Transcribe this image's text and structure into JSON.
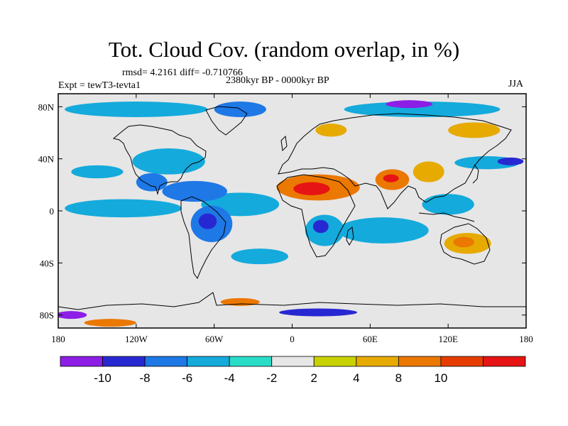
{
  "title": "Tot. Cloud Cov. (random overlap, in %)",
  "stats": "rmsd= 4.2161 diff= -0.710766",
  "period": "2380kyr BP - 0000kyr BP",
  "experiment": "Expt = tewT3-tevta1",
  "season": "JJA",
  "map": {
    "projection": "cylindrical equidistant",
    "lon_range": [
      -180,
      180
    ],
    "lat_range": [
      -90,
      90
    ],
    "background_color": "#e6e6e6",
    "coastline_color": "#000000",
    "lon_ticks": [
      {
        "value": -180,
        "label": "180"
      },
      {
        "value": -120,
        "label": "120W"
      },
      {
        "value": -60,
        "label": "60W"
      },
      {
        "value": 0,
        "label": "0"
      },
      {
        "value": 60,
        "label": "60E"
      },
      {
        "value": 120,
        "label": "120E"
      },
      {
        "value": 180,
        "label": "180"
      }
    ],
    "lat_ticks": [
      {
        "value": 80,
        "label": "80N"
      },
      {
        "value": 40,
        "label": "40N"
      },
      {
        "value": 0,
        "label": "0"
      },
      {
        "value": -40,
        "label": "40S"
      },
      {
        "value": -80,
        "label": "80S"
      }
    ]
  },
  "colorbar": {
    "colors": [
      "#8c1ee6",
      "#2828d2",
      "#1e78e6",
      "#14aadc",
      "#28dcc8",
      "#e6e6e6",
      "#c8d200",
      "#e6aa00",
      "#eb7800",
      "#e63c00",
      "#e61414"
    ],
    "labels": [
      {
        "boundary": 1,
        "text": "-10"
      },
      {
        "boundary": 2,
        "text": "-8"
      },
      {
        "boundary": 3,
        "text": "-6"
      },
      {
        "boundary": 4,
        "text": "-4"
      },
      {
        "boundary": 5,
        "text": "-2"
      },
      {
        "boundary": 6,
        "text": "2"
      },
      {
        "boundary": 7,
        "text": "4"
      },
      {
        "boundary": 8,
        "text": "8"
      },
      {
        "boundary": 9,
        "text": "10"
      }
    ]
  },
  "anomaly_regions": [
    {
      "name": "north-africa-arabia-increase",
      "lon": 20,
      "lat": 18,
      "rx": 32,
      "ry": 10,
      "level": 8
    },
    {
      "name": "sahel-core",
      "lon": 15,
      "lat": 17,
      "rx": 14,
      "ry": 5,
      "level": 10
    },
    {
      "name": "india-increase",
      "lon": 77,
      "lat": 24,
      "rx": 13,
      "ry": 8,
      "level": 8
    },
    {
      "name": "india-core",
      "lon": 76,
      "lat": 25,
      "rx": 6,
      "ry": 3,
      "level": 10
    },
    {
      "name": "east-asia-increase",
      "lon": 105,
      "lat": 30,
      "rx": 12,
      "ry": 8,
      "level": 4
    },
    {
      "name": "australia-increase",
      "lon": 135,
      "lat": -25,
      "rx": 18,
      "ry": 8,
      "level": 4
    },
    {
      "name": "australia-core",
      "lon": 132,
      "lat": -24,
      "rx": 8,
      "ry": 4,
      "level": 8
    },
    {
      "name": "tropical-atlantic-decrease",
      "lon": -40,
      "lat": 5,
      "rx": 30,
      "ry": 9,
      "level": -4
    },
    {
      "name": "caribbean-decrease",
      "lon": -75,
      "lat": 15,
      "rx": 25,
      "ry": 8,
      "level": -6
    },
    {
      "name": "amazon-decrease",
      "lon": -62,
      "lat": -10,
      "rx": 16,
      "ry": 14,
      "level": -6
    },
    {
      "name": "amazon-core",
      "lon": -65,
      "lat": -8,
      "rx": 7,
      "ry": 6,
      "level": -8
    },
    {
      "name": "north-america-decrease",
      "lon": -95,
      "lat": 38,
      "rx": 28,
      "ry": 10,
      "level": -4
    },
    {
      "name": "mexico-decrease",
      "lon": -108,
      "lat": 22,
      "rx": 12,
      "ry": 7,
      "level": -6
    },
    {
      "name": "eastern-pacific-decrease",
      "lon": -130,
      "lat": 2,
      "rx": 45,
      "ry": 7,
      "level": -4
    },
    {
      "name": "central-pacific-decrease",
      "lon": -150,
      "lat": 30,
      "rx": 20,
      "ry": 5,
      "level": -4
    },
    {
      "name": "southern-africa-decrease",
      "lon": 25,
      "lat": -15,
      "rx": 15,
      "ry": 12,
      "level": -4
    },
    {
      "name": "southern-africa-core",
      "lon": 22,
      "lat": -12,
      "rx": 6,
      "ry": 5,
      "level": -8
    },
    {
      "name": "indian-ocean-decrease",
      "lon": 70,
      "lat": -15,
      "rx": 35,
      "ry": 10,
      "level": -4
    },
    {
      "name": "south-atlantic-decrease",
      "lon": -25,
      "lat": -35,
      "rx": 22,
      "ry": 6,
      "level": -4
    },
    {
      "name": "maritime-continent-decrease",
      "lon": 120,
      "lat": 5,
      "rx": 20,
      "ry": 8,
      "level": -4
    },
    {
      "name": "north-pacific-decrease",
      "lon": 150,
      "lat": 37,
      "rx": 25,
      "ry": 5,
      "level": -4
    },
    {
      "name": "north-pacific-core",
      "lon": 168,
      "lat": 38,
      "rx": 10,
      "ry": 3,
      "level": -8
    },
    {
      "name": "arctic-canada-decrease",
      "lon": -120,
      "lat": 78,
      "rx": 55,
      "ry": 6,
      "level": -4
    },
    {
      "name": "greenland-sea-decrease",
      "lon": -40,
      "lat": 78,
      "rx": 20,
      "ry": 6,
      "level": -6
    },
    {
      "name": "arctic-siberia-decrease",
      "lon": 100,
      "lat": 78,
      "rx": 60,
      "ry": 6,
      "level": -4
    },
    {
      "name": "arctic-siberia-core",
      "lon": 90,
      "lat": 82,
      "rx": 18,
      "ry": 3,
      "level": -10
    },
    {
      "name": "scandinavia-increase",
      "lon": 30,
      "lat": 62,
      "rx": 12,
      "ry": 5,
      "level": 4
    },
    {
      "name": "siberia-increase",
      "lon": 140,
      "lat": 62,
      "rx": 20,
      "ry": 6,
      "level": 4
    },
    {
      "name": "antarctic-coast-decrease",
      "lon": 20,
      "lat": -78,
      "rx": 30,
      "ry": 3,
      "level": -8
    },
    {
      "name": "ross-sea-decrease",
      "lon": -170,
      "lat": -80,
      "rx": 12,
      "ry": 3,
      "level": -10
    },
    {
      "name": "southern-ocean-increase",
      "lon": -140,
      "lat": -86,
      "rx": 20,
      "ry": 3,
      "level": 8
    },
    {
      "name": "weddell-increase",
      "lon": -40,
      "lat": -70,
      "rx": 15,
      "ry": 3,
      "level": 8
    }
  ]
}
